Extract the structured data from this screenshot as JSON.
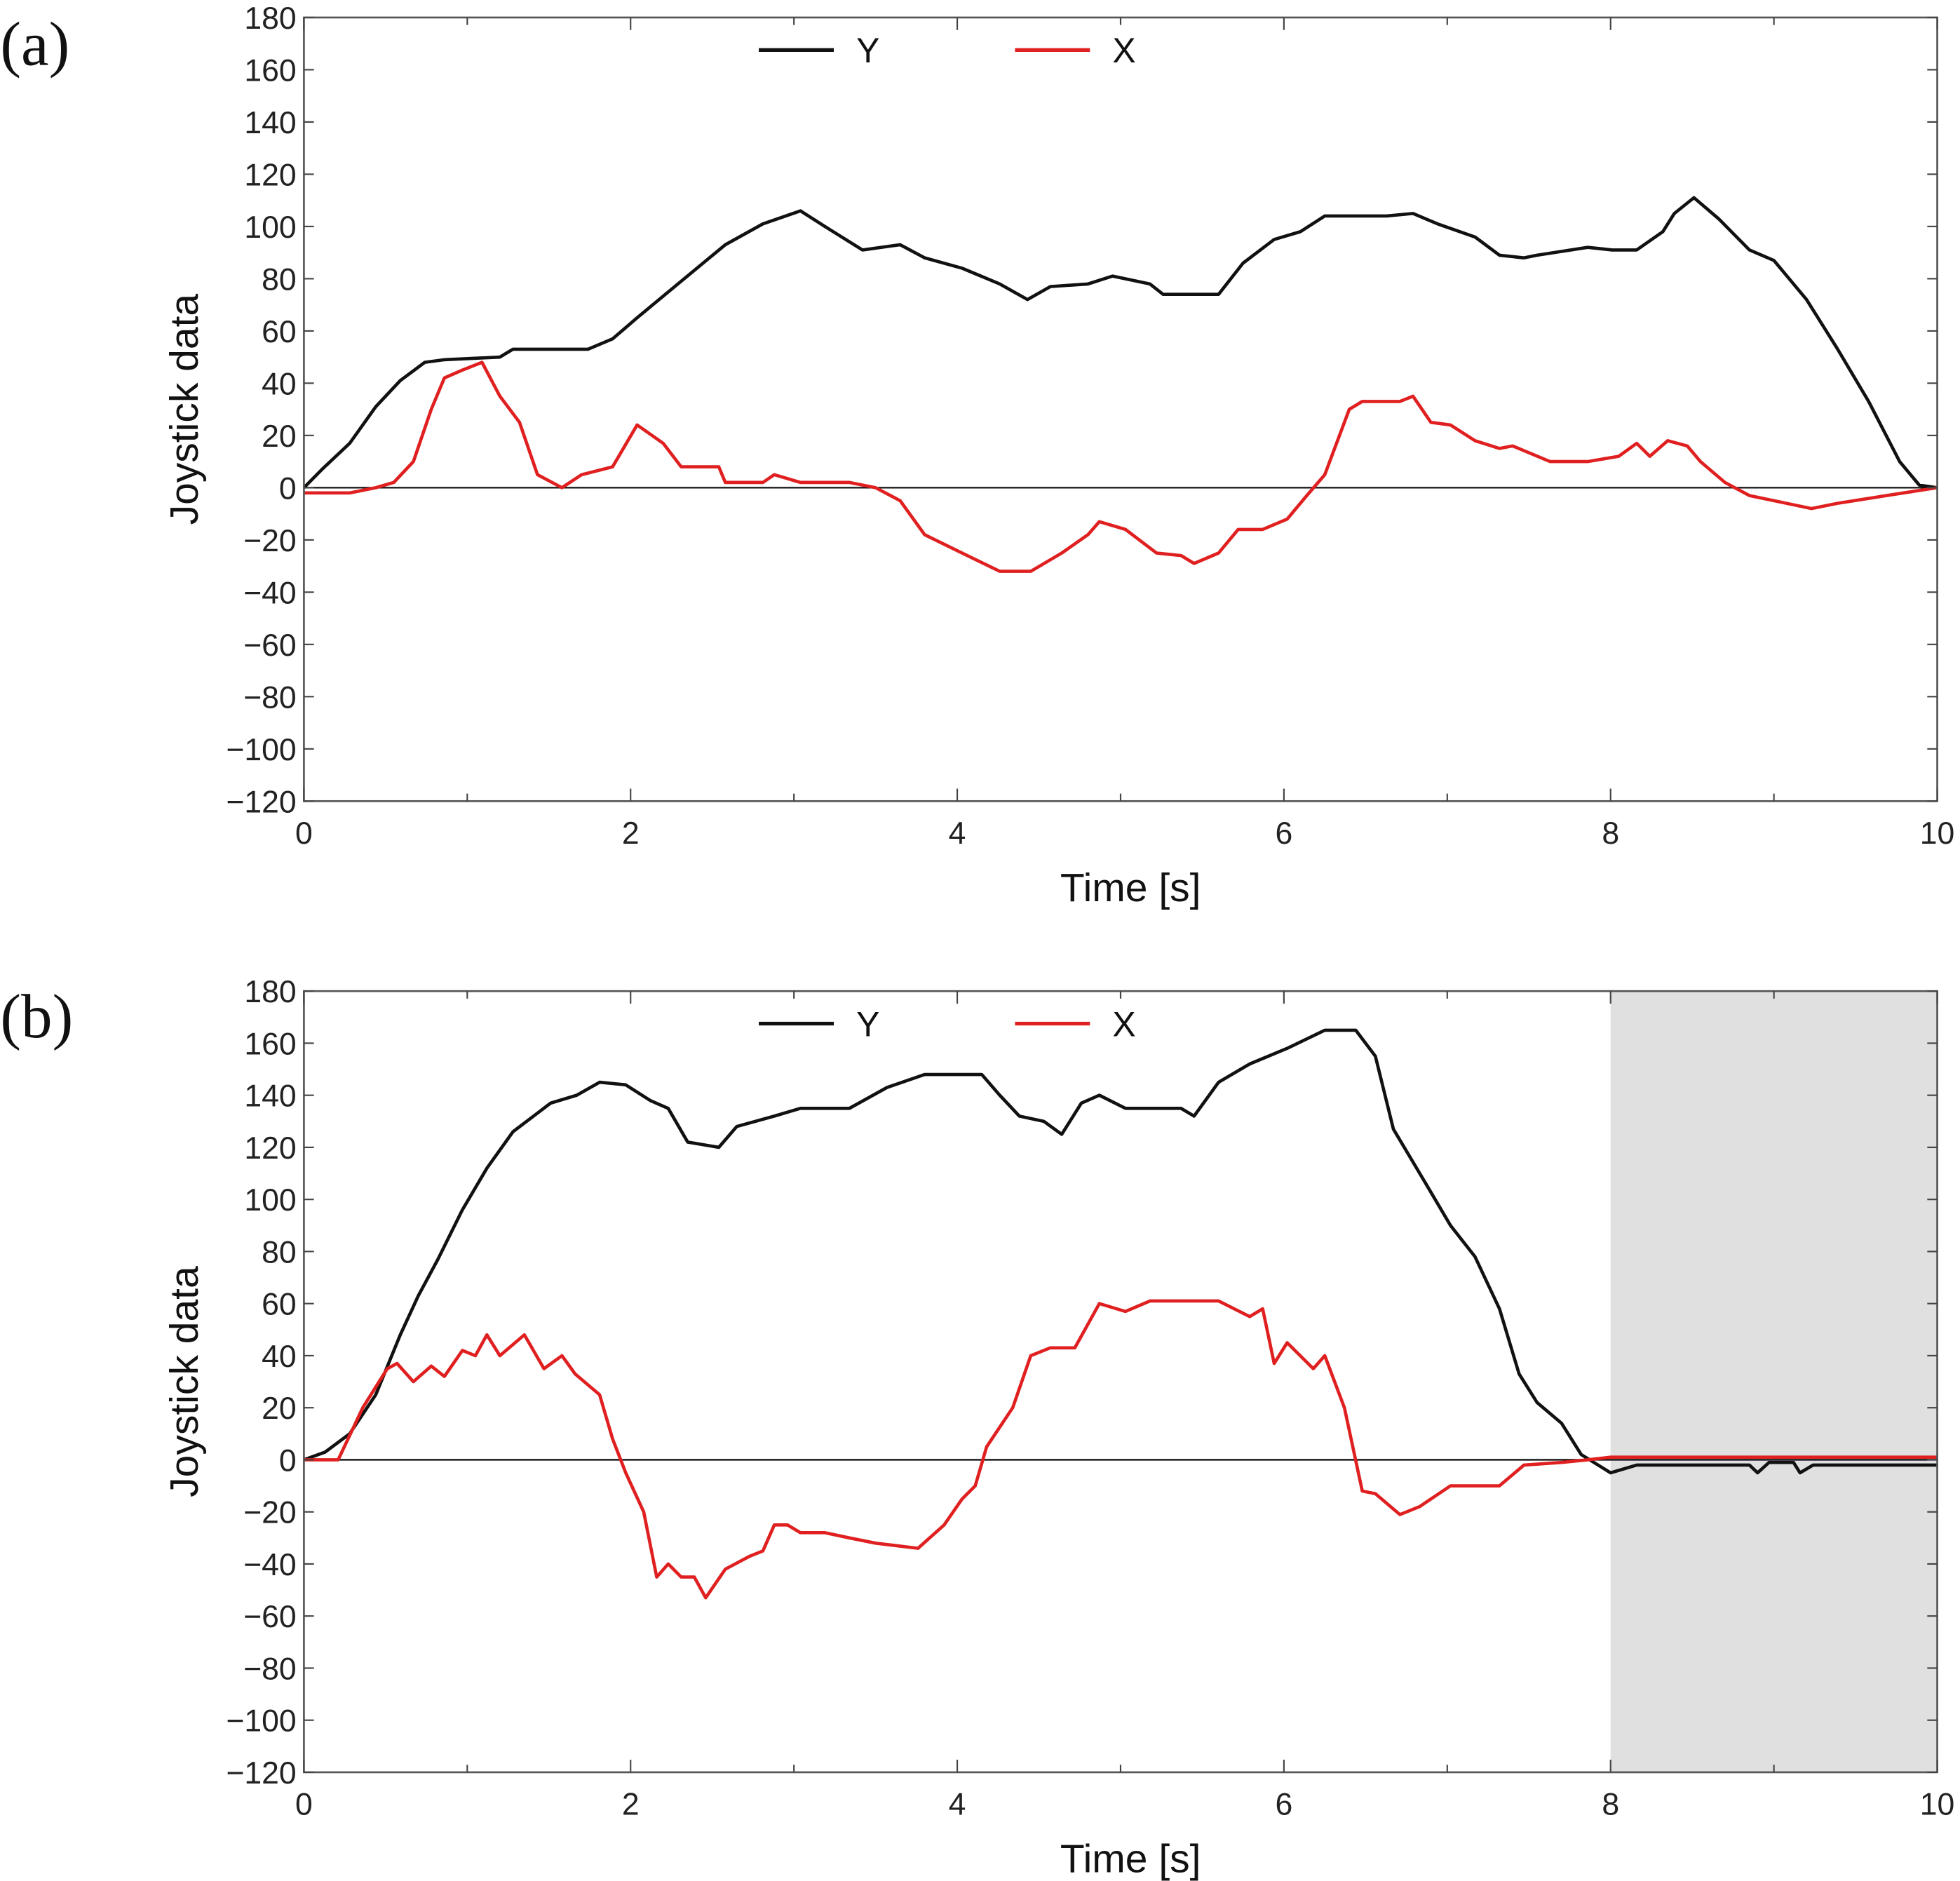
{
  "chart_data": [
    {
      "type": "line",
      "panel_label": "(a)",
      "xlabel": "Time [s]",
      "ylabel": "Joystick data",
      "xlim": [
        0,
        10
      ],
      "ylim": [
        -120,
        180
      ],
      "xticks": [
        0,
        2,
        4,
        6,
        8,
        10
      ],
      "yticks": [
        -120,
        -100,
        -80,
        -60,
        -40,
        -20,
        0,
        20,
        40,
        60,
        80,
        100,
        120,
        140,
        160,
        180
      ],
      "grid": false,
      "legend": {
        "placement": "top-center",
        "entries": [
          "Y",
          "X"
        ]
      },
      "shaded_region": null,
      "series": [
        {
          "name": "Y",
          "color": "#111111",
          "x": [
            0,
            0.11,
            0.28,
            0.44,
            0.59,
            0.74,
            0.86,
            1.2,
            1.28,
            1.74,
            1.89,
            2.04,
            2.27,
            2.58,
            2.81,
            3.04,
            3.19,
            3.42,
            3.65,
            3.8,
            4.03,
            4.26,
            4.43,
            4.57,
            4.8,
            4.95,
            5.18,
            5.26,
            5.6,
            5.75,
            5.94,
            6.1,
            6.25,
            6.63,
            6.79,
            6.94,
            7.17,
            7.32,
            7.47,
            7.55,
            7.86,
            8.01,
            8.16,
            8.32,
            8.39,
            8.51,
            8.66,
            8.85,
            9.0,
            9.2,
            9.39,
            9.58,
            9.77,
            9.89,
            10
          ],
          "y": [
            0,
            7,
            17,
            31,
            41,
            48,
            49,
            50,
            53,
            53,
            57,
            65,
            77,
            93,
            101,
            106,
            100,
            91,
            93,
            88,
            84,
            78,
            72,
            77,
            78,
            81,
            78,
            74,
            74,
            86,
            95,
            98,
            104,
            104,
            105,
            101,
            96,
            89,
            88,
            89,
            92,
            91,
            91,
            98,
            105,
            111,
            103,
            91,
            87,
            72,
            53,
            33,
            10,
            1,
            0
          ]
        },
        {
          "name": "X",
          "color": "#e02020",
          "x": [
            0,
            0.28,
            0.44,
            0.55,
            0.67,
            0.78,
            0.86,
            0.97,
            1.09,
            1.2,
            1.32,
            1.43,
            1.58,
            1.7,
            1.89,
            2.04,
            2.2,
            2.31,
            2.54,
            2.58,
            2.81,
            2.88,
            3.04,
            3.34,
            3.5,
            3.65,
            3.8,
            4.03,
            4.26,
            4.45,
            4.64,
            4.8,
            4.87,
            5.03,
            5.22,
            5.37,
            5.45,
            5.6,
            5.72,
            5.87,
            6.02,
            6.14,
            6.25,
            6.4,
            6.48,
            6.71,
            6.79,
            6.9,
            7.02,
            7.17,
            7.32,
            7.4,
            7.63,
            7.86,
            8.05,
            8.16,
            8.24,
            8.35,
            8.47,
            8.55,
            8.7,
            8.85,
            9.0,
            9.23,
            9.39,
            9.69,
            10
          ],
          "y": [
            -2,
            -2,
            0,
            2,
            10,
            30,
            42,
            45,
            48,
            35,
            25,
            5,
            0,
            5,
            8,
            24,
            17,
            8,
            8,
            2,
            2,
            5,
            2,
            2,
            0,
            -5,
            -18,
            -25,
            -32,
            -32,
            -25,
            -18,
            -13,
            -16,
            -25,
            -26,
            -29,
            -25,
            -16,
            -16,
            -12,
            -3,
            5,
            30,
            33,
            33,
            35,
            25,
            24,
            18,
            15,
            16,
            10,
            10,
            12,
            17,
            12,
            18,
            16,
            10,
            2,
            -3,
            -5,
            -8,
            -6,
            -3,
            0
          ]
        }
      ]
    },
    {
      "type": "line",
      "panel_label": "(b)",
      "xlabel": "Time [s]",
      "ylabel": "Joystick data",
      "xlim": [
        0,
        10
      ],
      "ylim": [
        -120,
        180
      ],
      "xticks": [
        0,
        2,
        4,
        6,
        8,
        10
      ],
      "yticks": [
        -120,
        -100,
        -80,
        -60,
        -40,
        -20,
        0,
        20,
        40,
        60,
        80,
        100,
        120,
        140,
        160,
        180
      ],
      "grid": false,
      "legend": {
        "placement": "top-center",
        "entries": [
          "Y",
          "X"
        ]
      },
      "shaded_region": {
        "x": [
          8,
          10
        ],
        "color": "#e0e0e0"
      },
      "series": [
        {
          "name": "Y",
          "color": "#111111",
          "x": [
            0,
            0.13,
            0.28,
            0.44,
            0.59,
            0.7,
            0.82,
            0.97,
            1.12,
            1.28,
            1.51,
            1.67,
            1.81,
            1.97,
            2.12,
            2.23,
            2.35,
            2.54,
            2.65,
            2.88,
            3.04,
            3.34,
            3.57,
            3.8,
            4.15,
            4.26,
            4.38,
            4.53,
            4.64,
            4.76,
            4.87,
            5.03,
            5.37,
            5.45,
            5.6,
            5.79,
            6.02,
            6.25,
            6.44,
            6.56,
            6.67,
            6.86,
            7.02,
            7.17,
            7.32,
            7.44,
            7.55,
            7.7,
            7.82,
            8.0,
            8.16,
            8.85,
            8.9,
            8.97,
            9.12,
            9.16,
            9.24,
            10
          ],
          "y": [
            0,
            3,
            10,
            25,
            48,
            63,
            77,
            96,
            112,
            126,
            137,
            140,
            145,
            144,
            138,
            135,
            122,
            120,
            128,
            132,
            135,
            135,
            143,
            148,
            148,
            140,
            132,
            130,
            125,
            137,
            140,
            135,
            135,
            132,
            145,
            152,
            158,
            165,
            165,
            155,
            127,
            107,
            90,
            78,
            58,
            33,
            22,
            14,
            2,
            -5,
            -2,
            -2,
            -5,
            -1,
            -1,
            -5,
            -2,
            -2
          ]
        },
        {
          "name": "X",
          "color": "#e02020",
          "x": [
            0,
            0.21,
            0.36,
            0.51,
            0.57,
            0.67,
            0.78,
            0.86,
            0.97,
            1.05,
            1.12,
            1.2,
            1.35,
            1.47,
            1.58,
            1.66,
            1.81,
            1.89,
            1.97,
            2.08,
            2.16,
            2.23,
            2.31,
            2.39,
            2.46,
            2.58,
            2.73,
            2.81,
            2.88,
            2.96,
            3.04,
            3.19,
            3.34,
            3.5,
            3.76,
            3.92,
            4.03,
            4.11,
            4.18,
            4.34,
            4.45,
            4.57,
            4.72,
            4.87,
            5.03,
            5.18,
            5.6,
            5.79,
            5.87,
            5.94,
            6.02,
            6.18,
            6.25,
            6.37,
            6.48,
            6.56,
            6.71,
            6.83,
            7.02,
            7.13,
            7.32,
            7.47,
            7.7,
            7.86,
            8.0,
            10
          ],
          "y": [
            0,
            0,
            20,
            35,
            37,
            30,
            36,
            32,
            42,
            40,
            48,
            40,
            48,
            35,
            40,
            33,
            25,
            8,
            -5,
            -20,
            -45,
            -40,
            -45,
            -45,
            -53,
            -42,
            -37,
            -35,
            -25,
            -25,
            -28,
            -28,
            -30,
            -32,
            -34,
            -25,
            -15,
            -10,
            5,
            20,
            40,
            43,
            43,
            60,
            57,
            61,
            61,
            55,
            58,
            37,
            45,
            35,
            40,
            20,
            -12,
            -13,
            -21,
            -18,
            -10,
            -10,
            -10,
            -2,
            -1,
            0,
            1,
            1
          ]
        }
      ]
    }
  ]
}
